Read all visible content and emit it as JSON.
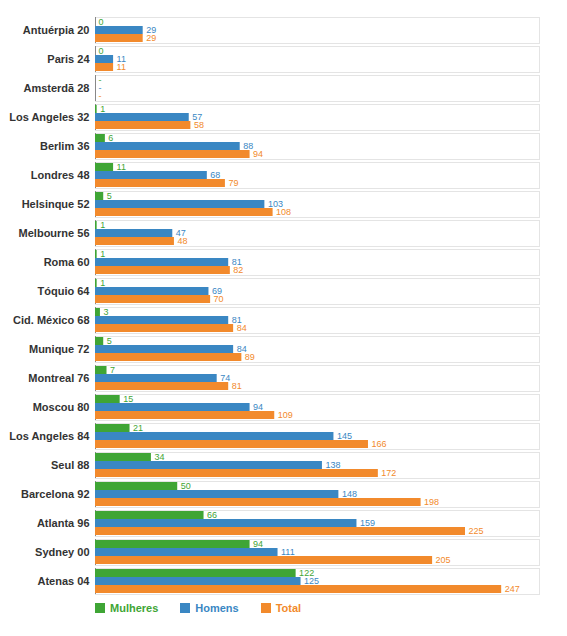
{
  "chart_data": {
    "type": "bar",
    "orientation": "horizontal",
    "data_labels": true,
    "tick_labels": "y",
    "legend": "bottom-left",
    "xlim": [
      0,
      270
    ],
    "categories": [
      "Antuérpia 20",
      "Paris 24",
      "Amsterdã 28",
      "Los Angeles 32",
      "Berlim 36",
      "Londres 48",
      "Helsinque 52",
      "Melbourne 56",
      "Roma 60",
      "Tóquio 64",
      "Cid. México 68",
      "Munique 72",
      "Montreal 76",
      "Moscou 80",
      "Los Angeles 84",
      "Seul 88",
      "Barcelona 92",
      "Atlanta 96",
      "Sydney 00",
      "Atenas 04"
    ],
    "series": [
      {
        "name": "Mulheres",
        "color": "#3fa535",
        "values": [
          0,
          0,
          null,
          1,
          6,
          11,
          5,
          1,
          1,
          1,
          3,
          5,
          7,
          15,
          21,
          34,
          50,
          66,
          94,
          122
        ],
        "value_labels": [
          "0",
          "0",
          "-",
          "1",
          "6",
          "11",
          "5",
          "1",
          "1",
          "1",
          "3",
          "5",
          "7",
          "15",
          "21",
          "34",
          "50",
          "66",
          "94",
          "122"
        ]
      },
      {
        "name": "Homens",
        "color": "#3a87c3",
        "values": [
          29,
          11,
          null,
          57,
          88,
          68,
          103,
          47,
          81,
          69,
          81,
          84,
          74,
          94,
          145,
          138,
          148,
          159,
          111,
          125
        ],
        "value_labels": [
          "29",
          "11",
          "-",
          "57",
          "88",
          "68",
          "103",
          "47",
          "81",
          "69",
          "81",
          "84",
          "74",
          "94",
          "145",
          "138",
          "148",
          "159",
          "111",
          "125"
        ]
      },
      {
        "name": "Total",
        "color": "#f28a2c",
        "values": [
          29,
          11,
          null,
          58,
          94,
          79,
          108,
          48,
          82,
          70,
          84,
          89,
          81,
          109,
          166,
          172,
          198,
          225,
          205,
          247
        ],
        "value_labels": [
          "29",
          "11",
          "-",
          "58",
          "94",
          "79",
          "108",
          "48",
          "82",
          "70",
          "84",
          "89",
          "81",
          "109",
          "166",
          "172",
          "198",
          "225",
          "205",
          "247"
        ]
      }
    ]
  }
}
